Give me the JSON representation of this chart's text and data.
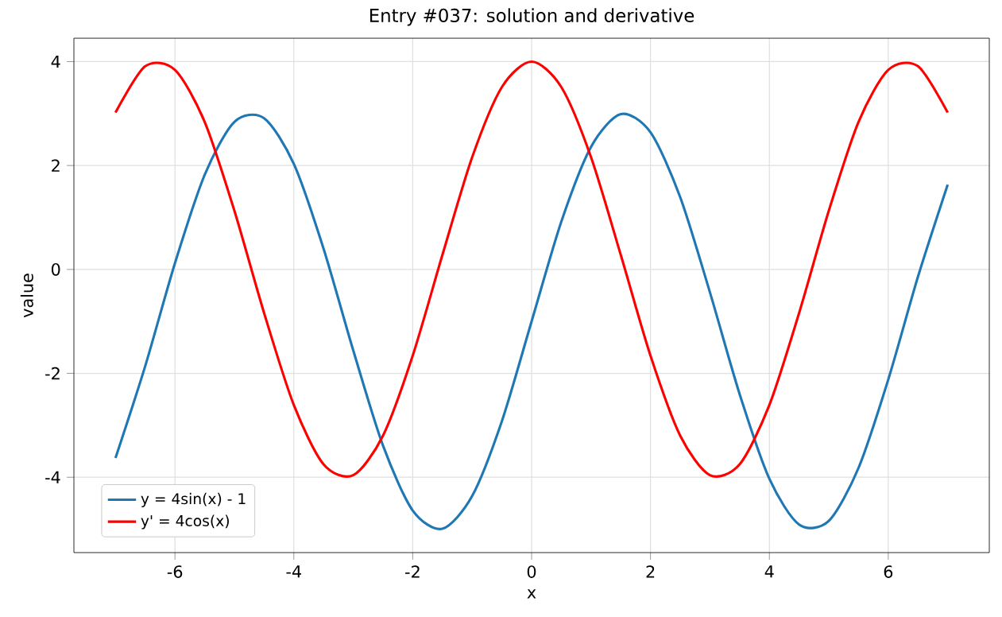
{
  "chart_data": {
    "type": "line",
    "title": "Entry #037: solution and derivative",
    "xlabel": "x",
    "ylabel": "value",
    "x": [
      -7,
      -6.5,
      -6,
      -5.5,
      -5,
      -4.5,
      -4,
      -3.5,
      -3,
      -2.5,
      -2,
      -1.5,
      -1,
      -0.5,
      0,
      0.5,
      1,
      1.5,
      2,
      2.5,
      3,
      3.5,
      4,
      4.5,
      5,
      5.5,
      6,
      6.5,
      7
    ],
    "series": [
      {
        "name": "y = 4sin(x) - 1",
        "color": "#1f77b4",
        "values": [
          -3.63,
          -1.86,
          0.12,
          1.82,
          2.84,
          2.91,
          2.03,
          0.4,
          -1.56,
          -3.39,
          -4.64,
          -4.99,
          -4.36,
          -2.92,
          -1,
          0.92,
          2.36,
          2.99,
          2.64,
          1.39,
          -0.44,
          -2.4,
          -4.03,
          -4.91,
          -4.84,
          -3.82,
          -2.12,
          -0.14,
          1.63
        ]
      },
      {
        "name": "y' = 4cos(x)",
        "color": "#ff0000",
        "values": [
          3.02,
          3.91,
          3.84,
          2.84,
          1.13,
          -0.84,
          -2.61,
          -3.75,
          -3.96,
          -3.2,
          -1.66,
          0.28,
          2.16,
          3.51,
          4,
          3.51,
          2.16,
          0.28,
          -1.66,
          -3.2,
          -3.96,
          -3.75,
          -2.61,
          -0.84,
          1.13,
          2.84,
          3.84,
          3.91,
          3.02
        ]
      }
    ],
    "xlim": [
      -7.7,
      7.7
    ],
    "ylim": [
      -5.45,
      4.45
    ],
    "xticks": [
      -6,
      -4,
      -2,
      0,
      2,
      4,
      6
    ],
    "yticks": [
      -4,
      -2,
      0,
      2,
      4
    ],
    "grid": true,
    "legend": "bottom left"
  }
}
